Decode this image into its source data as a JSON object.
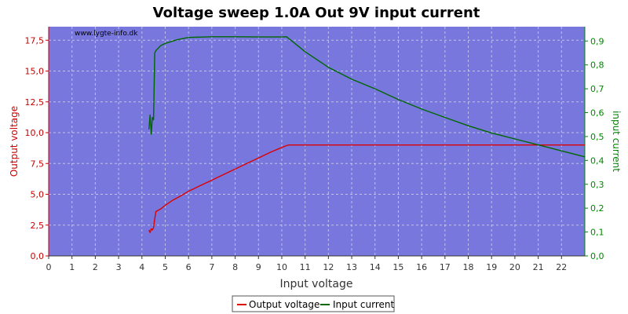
{
  "chart_data": {
    "type": "line",
    "title": "Voltage sweep 1.0A Out 9V input current",
    "watermark": "www.lygte-info.dk",
    "xlabel": "Input voltage",
    "ylabel_left": "Output voltage",
    "ylabel_right": "input current",
    "xlim": [
      0,
      23
    ],
    "ylim_left": [
      0,
      18.6
    ],
    "ylim_right": [
      0,
      0.96
    ],
    "x_ticks": [
      "0",
      "1",
      "2",
      "3",
      "4",
      "5",
      "6",
      "7",
      "8",
      "9",
      "10",
      "11",
      "12",
      "13",
      "14",
      "15",
      "16",
      "17",
      "18",
      "19",
      "20",
      "21",
      "22"
    ],
    "y_left_ticks": [
      "0,0",
      "2,5",
      "5,0",
      "7,5",
      "10,0",
      "12,5",
      "15,0",
      "17,5"
    ],
    "y_right_ticks": [
      "0,0",
      "0,1",
      "0,2",
      "0,3",
      "0,4",
      "0,5",
      "0,6",
      "0,7",
      "0,8",
      "0,9"
    ],
    "grid": true,
    "legend_position": "bottom",
    "colors": {
      "plot_bg": "#7777dd",
      "output_voltage": "#dd0000",
      "input_current": "#006600",
      "left_axis": "#cc0000",
      "right_axis": "#008800"
    },
    "series": [
      {
        "name": "Output voltage",
        "axis": "left",
        "x": [
          4.3,
          4.35,
          4.4,
          4.45,
          4.5,
          4.55,
          4.6,
          4.7,
          4.8,
          5.0,
          5.3,
          5.6,
          6.0,
          6.5,
          7.0,
          7.5,
          8.0,
          8.5,
          9.0,
          9.5,
          10.0,
          10.2,
          10.3,
          11,
          12,
          14,
          16,
          18,
          20,
          22,
          23
        ],
        "y": [
          2.1,
          1.9,
          2.2,
          2.1,
          2.3,
          3.0,
          3.6,
          3.7,
          3.8,
          4.1,
          4.5,
          4.8,
          5.25,
          5.7,
          6.15,
          6.6,
          7.05,
          7.5,
          7.95,
          8.4,
          8.8,
          8.95,
          9.0,
          9.0,
          9.0,
          9.0,
          9.0,
          9.0,
          9.0,
          9.0,
          9.0
        ]
      },
      {
        "name": "Input current",
        "axis": "right",
        "x": [
          4.3,
          4.35,
          4.4,
          4.45,
          4.5,
          4.55,
          4.6,
          4.7,
          4.8,
          5.0,
          5.5,
          6.0,
          7.0,
          8.0,
          9.0,
          10.0,
          10.2,
          10.5,
          11,
          12,
          13,
          14,
          15,
          16,
          17,
          18,
          19,
          20,
          21,
          22,
          23
        ],
        "y": [
          0.53,
          0.59,
          0.51,
          0.58,
          0.57,
          0.85,
          0.86,
          0.87,
          0.88,
          0.89,
          0.905,
          0.915,
          0.918,
          0.918,
          0.917,
          0.917,
          0.918,
          0.895,
          0.855,
          0.79,
          0.74,
          0.7,
          0.655,
          0.615,
          0.58,
          0.545,
          0.515,
          0.49,
          0.465,
          0.44,
          0.415
        ]
      }
    ]
  }
}
